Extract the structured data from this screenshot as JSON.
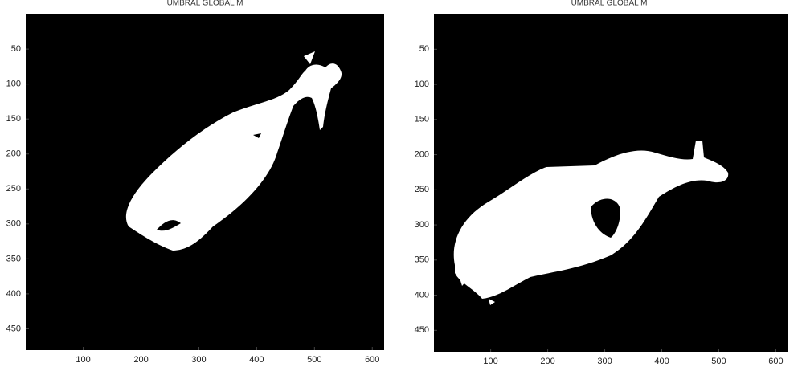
{
  "panels": [
    {
      "title": "UMBRAL GLOBAL M",
      "xlim": [
        0.5,
        620.5
      ],
      "ylim": [
        0.5,
        480.5
      ],
      "xticks": [
        100,
        200,
        300,
        400,
        500,
        600
      ],
      "yticks": [
        50,
        100,
        150,
        200,
        250,
        300,
        350,
        400,
        450
      ]
    },
    {
      "title": "UMBRAL GLOBAL M",
      "xlim": [
        0.5,
        620.5
      ],
      "ylim": [
        0.5,
        480.5
      ],
      "xticks": [
        100,
        200,
        300,
        400,
        500,
        600
      ],
      "yticks": [
        50,
        100,
        150,
        200,
        250,
        300,
        350,
        400,
        450
      ]
    }
  ]
}
